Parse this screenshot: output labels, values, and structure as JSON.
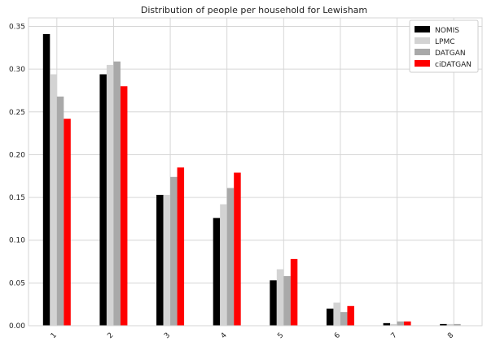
{
  "chart_data": {
    "type": "bar",
    "title": "Distribution of people per household for Lewisham",
    "xlabel": "",
    "ylabel": "",
    "categories": [
      "1",
      "2",
      "3",
      "4",
      "5",
      "6",
      "7",
      "8"
    ],
    "ylim": [
      0,
      0.36
    ],
    "yticks": [
      "0.00",
      "0.05",
      "0.10",
      "0.15",
      "0.20",
      "0.25",
      "0.30",
      "0.35"
    ],
    "grid": true,
    "legend_position": "top-right",
    "series": [
      {
        "name": "NOMIS",
        "color": "#000000",
        "values": [
          0.341,
          0.294,
          0.153,
          0.126,
          0.053,
          0.02,
          0.003,
          0.002
        ]
      },
      {
        "name": "LPMC",
        "color": "#d3d3d3",
        "values": [
          0.294,
          0.305,
          0.153,
          0.142,
          0.066,
          0.027,
          0.002,
          0.002
        ]
      },
      {
        "name": "DATGAN",
        "color": "#a9a9a9",
        "values": [
          0.268,
          0.309,
          0.174,
          0.161,
          0.058,
          0.016,
          0.005,
          0.002
        ]
      },
      {
        "name": "ciDATGAN",
        "color": "#ff0000",
        "values": [
          0.242,
          0.28,
          0.185,
          0.179,
          0.078,
          0.023,
          0.005,
          0.0
        ]
      }
    ]
  }
}
